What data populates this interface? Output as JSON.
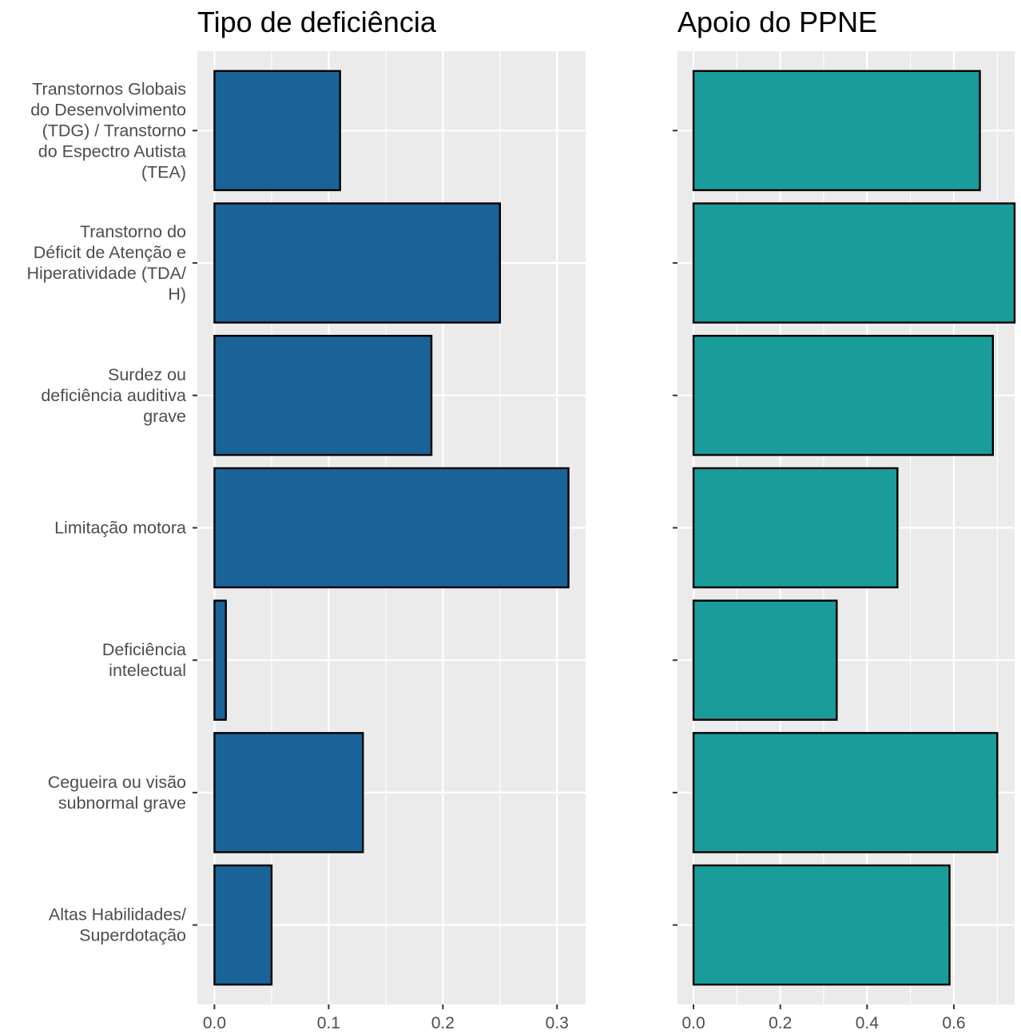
{
  "chart_data": [
    {
      "type": "bar",
      "orientation": "horizontal",
      "title": "Tipo de deficiência",
      "categories": [
        [
          "Transtornos Globais",
          "do Desenvolvimento",
          "(TDG) / Transtorno",
          "do Espectro Autista",
          "(TEA)"
        ],
        [
          "Transtorno do",
          "Déficit de Atenção e",
          "Hiperatividade (TDA/",
          "H)"
        ],
        [
          "Surdez ou",
          "deficiência auditiva",
          "grave"
        ],
        [
          "Limitação motora"
        ],
        [
          "Deficiência",
          "intelectual"
        ],
        [
          "Cegueira ou visão",
          "subnormal grave"
        ],
        [
          "Altas Habilidades/",
          "Superdotação"
        ]
      ],
      "values": [
        0.11,
        0.25,
        0.19,
        0.31,
        0.01,
        0.13,
        0.05
      ],
      "xlim": [
        -0.015,
        0.325
      ],
      "xticks": [
        "0.0",
        "0.1",
        "0.2",
        "0.3"
      ],
      "xtick_values": [
        0,
        0.1,
        0.2,
        0.3
      ],
      "fill": "#1A6399",
      "outline": "#000000",
      "panel_background": "#EBEBEB",
      "grid": true
    },
    {
      "type": "bar",
      "orientation": "horizontal",
      "title": "Apoio do PPNE",
      "categories_shared": true,
      "values": [
        0.66,
        0.74,
        0.69,
        0.47,
        0.33,
        0.7,
        0.59
      ],
      "xlim": [
        -0.037,
        0.74
      ],
      "xticks": [
        "0.0",
        "0.2",
        "0.4",
        "0.6"
      ],
      "xtick_values": [
        0,
        0.2,
        0.4,
        0.6
      ],
      "fill": "#1A9C9A",
      "outline": "#000000",
      "panel_background": "#EBEBEB",
      "grid": true
    }
  ]
}
